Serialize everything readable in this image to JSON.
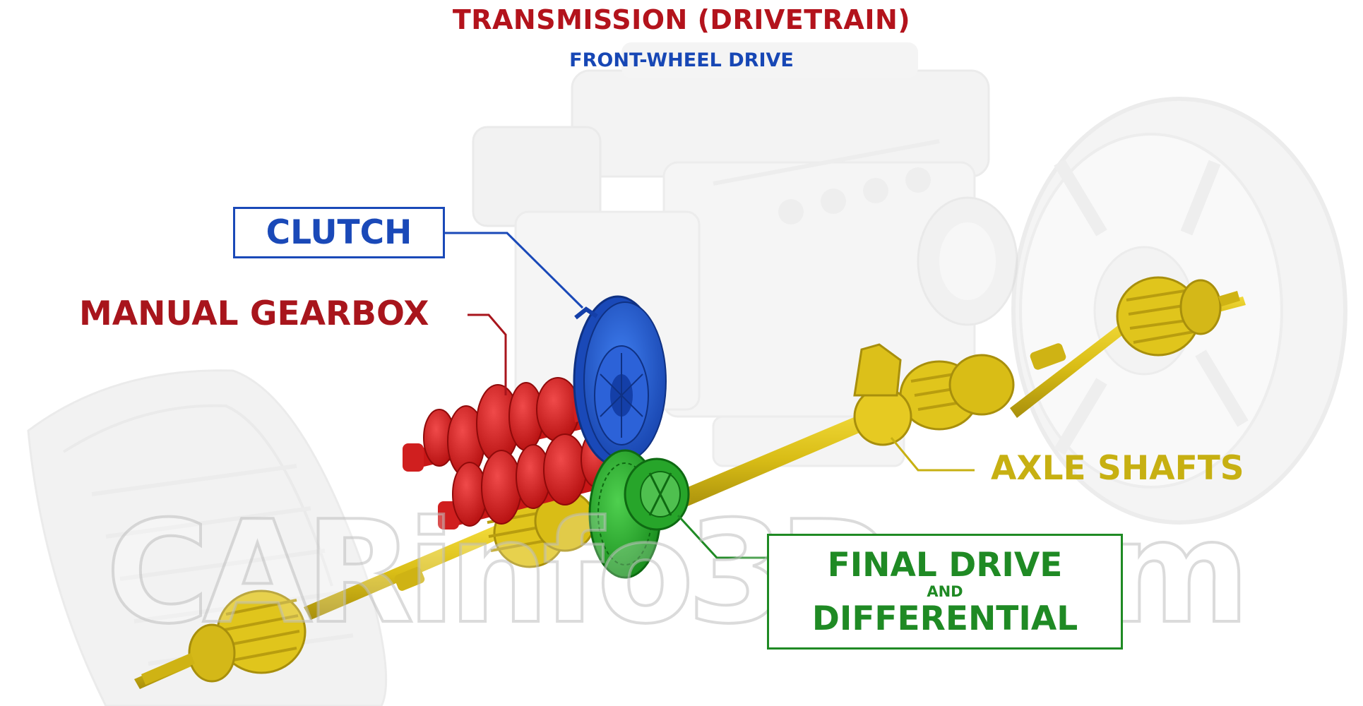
{
  "title": "TRANSMISSION (DRIVETRAIN)",
  "subtitle": "FRONT-WHEEL DRIVE",
  "watermark": "CARinfo3D.com",
  "labels": {
    "clutch": "CLUTCH",
    "manual_gearbox": "MANUAL GEARBOX",
    "axle_shafts": "AXLE SHAFTS",
    "final_drive_line1": "FINAL DRIVE",
    "final_drive_and": "AND",
    "final_drive_line2": "DIFFERENTIAL"
  },
  "colors": {
    "title": "#b3131c",
    "subtitle": "#1747b5",
    "clutch": "#1a49b8",
    "gearbox": "#d01f1f",
    "axle": "#d9bd16",
    "differential": "#27a52a",
    "ghost_parts": "#e8e8e8"
  }
}
